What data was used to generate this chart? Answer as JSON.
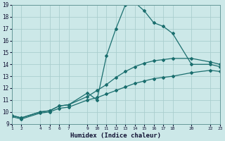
{
  "title": "",
  "xlabel": "Humidex (Indice chaleur)",
  "ylabel": "",
  "bg_color": "#cce8e8",
  "grid_color": "#aacece",
  "line_color": "#1a6e6e",
  "xlim": [
    1,
    23
  ],
  "ylim": [
    9,
    19
  ],
  "xticks": [
    1,
    2,
    4,
    5,
    6,
    7,
    9,
    10,
    11,
    12,
    13,
    14,
    15,
    16,
    17,
    18,
    20,
    22,
    23
  ],
  "yticks": [
    9,
    10,
    11,
    12,
    13,
    14,
    15,
    16,
    17,
    18,
    19
  ],
  "line1_x": [
    1,
    2,
    4,
    5,
    6,
    7,
    9,
    10,
    11,
    12,
    13,
    14,
    15,
    16,
    17,
    18,
    20,
    22,
    23
  ],
  "line1_y": [
    9.7,
    9.5,
    10.0,
    10.1,
    10.5,
    10.6,
    11.6,
    11.0,
    14.7,
    17.0,
    19.0,
    19.2,
    18.5,
    17.5,
    17.2,
    16.6,
    14.0,
    14.0,
    13.8
  ],
  "line2_x": [
    1,
    2,
    4,
    5,
    6,
    7,
    9,
    10,
    11,
    12,
    13,
    14,
    15,
    16,
    17,
    18,
    20,
    22,
    23
  ],
  "line2_y": [
    9.7,
    9.5,
    10.0,
    10.1,
    10.5,
    10.6,
    11.3,
    11.8,
    12.3,
    12.9,
    13.4,
    13.8,
    14.1,
    14.3,
    14.4,
    14.5,
    14.5,
    14.2,
    14.0
  ],
  "line3_x": [
    1,
    2,
    4,
    5,
    6,
    7,
    9,
    10,
    11,
    12,
    13,
    14,
    15,
    16,
    17,
    18,
    20,
    22,
    23
  ],
  "line3_y": [
    9.6,
    9.4,
    9.9,
    10.0,
    10.3,
    10.4,
    11.0,
    11.2,
    11.5,
    11.8,
    12.1,
    12.4,
    12.6,
    12.8,
    12.9,
    13.0,
    13.3,
    13.5,
    13.4
  ],
  "marker": "D",
  "markersize": 2.0,
  "linewidth": 0.9
}
